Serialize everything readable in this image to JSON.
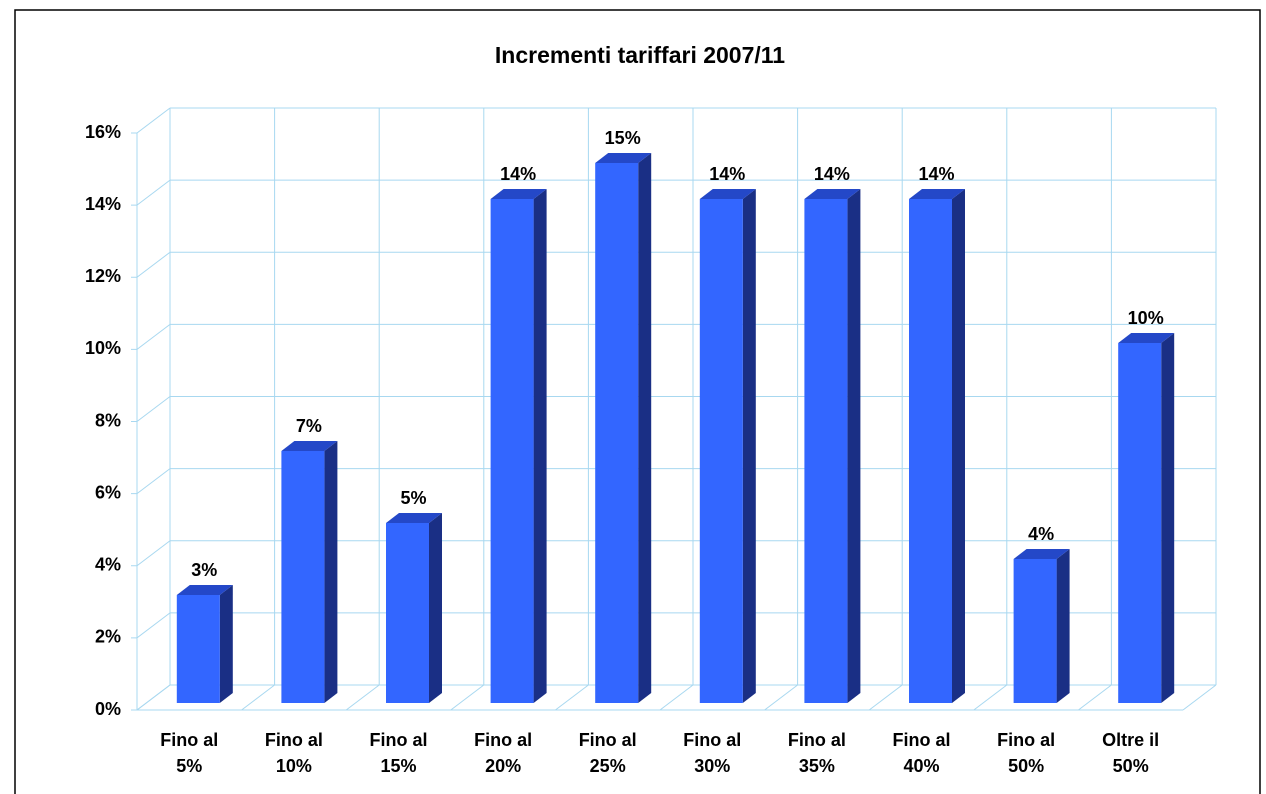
{
  "chart_data": {
    "type": "bar3d",
    "title": "Incrementi tariffari 2007/11",
    "categories": [
      "Fino al 5%",
      "Fino al 10%",
      "Fino al 15%",
      "Fino al 20%",
      "Fino al 25%",
      "Fino al 30%",
      "Fino al 35%",
      "Fino al 40%",
      "Fino al 50%",
      "Oltre il 50%"
    ],
    "values": [
      3,
      7,
      5,
      14,
      15,
      14,
      14,
      14,
      4,
      10
    ],
    "value_labels": [
      "3%",
      "7%",
      "5%",
      "14%",
      "15%",
      "14%",
      "14%",
      "14%",
      "4%",
      "10%"
    ],
    "color": "#3366ff",
    "ylim": [
      0,
      16
    ],
    "yticks": [
      {
        "value": 0,
        "label": "0%"
      },
      {
        "value": 2,
        "label": "2%"
      },
      {
        "value": 4,
        "label": "4%"
      },
      {
        "value": 6,
        "label": "6%"
      },
      {
        "value": 8,
        "label": "8%"
      },
      {
        "value": 10,
        "label": "10%"
      },
      {
        "value": 12,
        "label": "12%"
      },
      {
        "value": 14,
        "label": "14%"
      },
      {
        "value": 16,
        "label": "16%"
      }
    ],
    "grid": true
  }
}
